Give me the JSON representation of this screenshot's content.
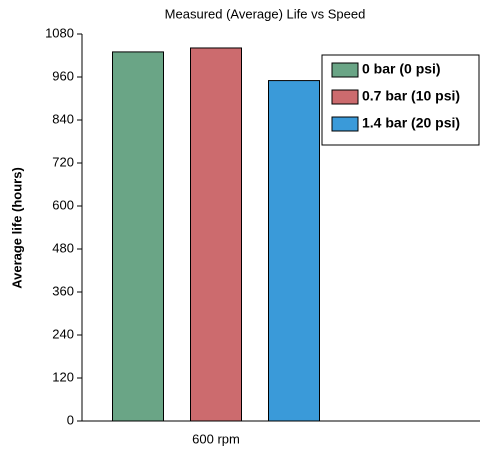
{
  "chart_data": {
    "type": "bar",
    "title": "Measured (Average) Life vs Speed",
    "y_label": "Average life (hours)",
    "categories": [
      "600 rpm"
    ],
    "series": [
      {
        "name": "0 bar (0 psi)",
        "color": "#6aa586",
        "values": [
          1030
        ]
      },
      {
        "name": "0.7 bar (10 psi)",
        "color": "#cc6b6e",
        "values": [
          1041
        ]
      },
      {
        "name": "1.4 bar (20 psi)",
        "color": "#3a9ad9",
        "values": [
          950
        ]
      }
    ],
    "ylim": [
      0,
      1080
    ],
    "yticks": [
      0,
      120,
      240,
      360,
      480,
      600,
      720,
      840,
      960,
      1080
    ],
    "legend": "upper right",
    "grid": false
  }
}
